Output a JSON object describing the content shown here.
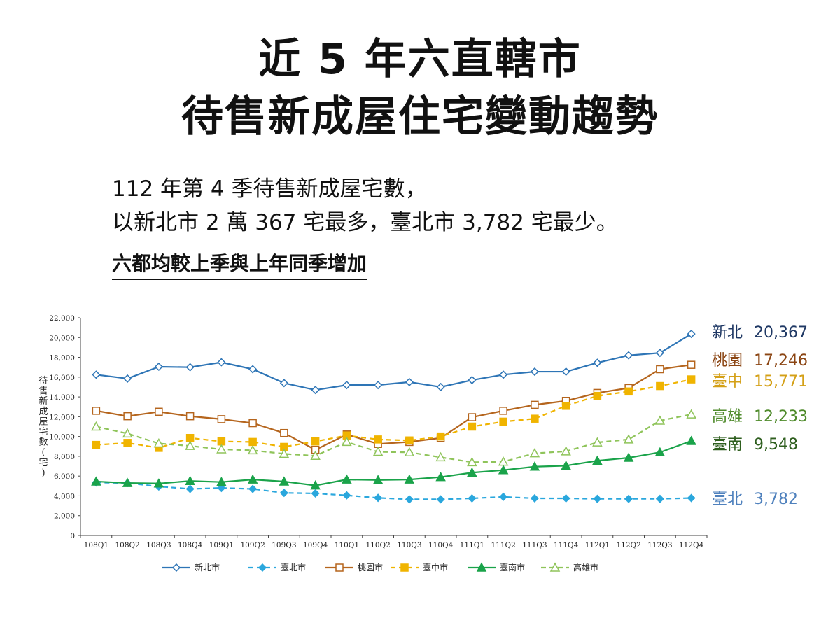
{
  "heading": {
    "title_line1": "近 5 年六直轄市",
    "title_line2": "待售新成屋住宅變動趨勢",
    "summary_line1": "112 年第 4 季待售新成屋宅數，",
    "summary_line2": "以新北市 2 萬 367 宅最多，臺北市 3,782 宅最少。",
    "highlight": "六都均較上季與上年同季增加"
  },
  "chart_data": {
    "type": "line",
    "title": "",
    "xlabel": "",
    "ylabel": "待售新成屋宅數(宅)",
    "ylim": [
      0,
      22000
    ],
    "yticks": [
      "0",
      "2,000",
      "4,000",
      "6,000",
      "8,000",
      "10,000",
      "12,000",
      "14,000",
      "16,000",
      "18,000",
      "20,000",
      "22,000"
    ],
    "categories": [
      "108Q1",
      "108Q2",
      "108Q3",
      "108Q4",
      "109Q1",
      "109Q2",
      "109Q3",
      "109Q4",
      "110Q1",
      "110Q2",
      "110Q3",
      "110Q4",
      "111Q1",
      "111Q2",
      "111Q3",
      "111Q4",
      "112Q1",
      "112Q2",
      "112Q3",
      "112Q4"
    ],
    "legend_placement": "bottom",
    "grid": false,
    "series": [
      {
        "name": "新北市",
        "color": "#2e75b6",
        "dash": false,
        "marker": "diamond-open",
        "end_label": "新北",
        "end_value": "20,367",
        "end_color": "#1f3864",
        "values": [
          16250,
          15850,
          17050,
          17000,
          17500,
          16800,
          15400,
          14700,
          15200,
          15200,
          15500,
          15000,
          15700,
          16250,
          16550,
          16550,
          17450,
          18200,
          18450,
          20367
        ]
      },
      {
        "name": "臺北市",
        "color": "#2aa7dd",
        "dash": true,
        "marker": "diamond-filled",
        "end_label": "臺北",
        "end_value": "3,782",
        "end_color": "#4f81bd",
        "values": [
          5350,
          5300,
          4950,
          4700,
          4800,
          4700,
          4300,
          4250,
          4050,
          3800,
          3650,
          3650,
          3750,
          3900,
          3750,
          3750,
          3700,
          3700,
          3700,
          3782
        ]
      },
      {
        "name": "桃園市",
        "color": "#b5651d",
        "dash": false,
        "marker": "square-open",
        "end_label": "桃園",
        "end_value": "17,246",
        "end_color": "#8b4513",
        "values": [
          12600,
          12050,
          12500,
          12050,
          11750,
          11350,
          10350,
          8650,
          10200,
          9250,
          9450,
          9850,
          11950,
          12600,
          13200,
          13600,
          14400,
          14900,
          16800,
          17246
        ]
      },
      {
        "name": "臺中市",
        "color": "#f0b400",
        "dash": true,
        "marker": "square-filled",
        "end_label": "臺中",
        "end_value": "15,771",
        "end_color": "#d4a017",
        "values": [
          9150,
          9350,
          8850,
          9850,
          9500,
          9450,
          8950,
          9500,
          10100,
          9700,
          9600,
          10000,
          11000,
          11500,
          11800,
          13100,
          14100,
          14550,
          15100,
          15771
        ]
      },
      {
        "name": "臺南市",
        "color": "#1aa34a",
        "dash": false,
        "marker": "triangle-filled",
        "end_label": "臺南",
        "end_value": "9,548",
        "end_color": "#2e5e1e",
        "values": [
          5450,
          5300,
          5250,
          5500,
          5400,
          5650,
          5450,
          5050,
          5650,
          5600,
          5650,
          5900,
          6350,
          6600,
          6950,
          7050,
          7550,
          7850,
          8400,
          9548
        ]
      },
      {
        "name": "高雄市",
        "color": "#8fc45a",
        "dash": true,
        "marker": "triangle-open",
        "end_label": "高雄",
        "end_value": "12,233",
        "end_color": "#4e8a2a",
        "values": [
          11000,
          10300,
          9300,
          9050,
          8700,
          8600,
          8250,
          8050,
          9450,
          8450,
          8400,
          7900,
          7400,
          7450,
          8300,
          8500,
          9400,
          9700,
          11600,
          12233
        ]
      }
    ]
  }
}
